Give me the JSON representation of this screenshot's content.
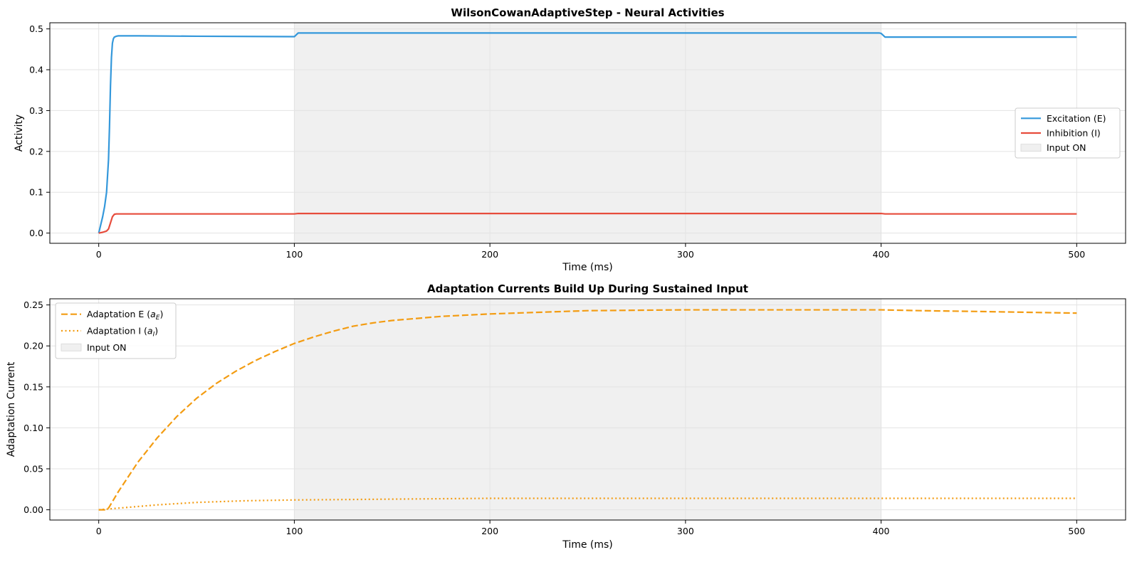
{
  "chart_data": [
    {
      "type": "line",
      "title": "WilsonCowanAdaptiveStep - Neural Activities",
      "xlabel": "Time (ms)",
      "ylabel": "Activity",
      "xlim": [
        -25,
        525
      ],
      "ylim": [
        -0.025,
        0.515
      ],
      "xticks": [
        0,
        100,
        200,
        300,
        400,
        500
      ],
      "yticks": [
        0.0,
        0.1,
        0.2,
        0.3,
        0.4,
        0.5
      ],
      "ytick_labels": [
        "0.0",
        "0.1",
        "0.2",
        "0.3",
        "0.4",
        "0.5"
      ],
      "grid": true,
      "legend_position": "center-right",
      "shaded_region": {
        "label": "Input ON",
        "x": [
          100,
          400
        ],
        "color": "#f0f0f0"
      },
      "series": [
        {
          "name": "Excitation (E)",
          "color": "#3498db",
          "style": "solid",
          "x": [
            0,
            1,
            2,
            3,
            4,
            5,
            5.5,
            6,
            6.5,
            7,
            7.5,
            8,
            9,
            10,
            20,
            50,
            99,
            100,
            102,
            150,
            250,
            350,
            399,
            400,
            402,
            450,
            500
          ],
          "y": [
            0.0,
            0.02,
            0.04,
            0.065,
            0.1,
            0.18,
            0.26,
            0.36,
            0.43,
            0.465,
            0.476,
            0.48,
            0.482,
            0.483,
            0.483,
            0.482,
            0.481,
            0.481,
            0.49,
            0.49,
            0.49,
            0.49,
            0.49,
            0.489,
            0.48,
            0.48,
            0.48
          ]
        },
        {
          "name": "Inhibition (I)",
          "color": "#e74c3c",
          "style": "solid",
          "x": [
            0,
            2,
            4,
            5,
            6,
            7,
            8,
            9,
            10,
            50,
            99,
            100,
            102,
            200,
            300,
            399,
            400,
            402,
            450,
            500
          ],
          "y": [
            0.0,
            0.002,
            0.005,
            0.01,
            0.025,
            0.04,
            0.046,
            0.047,
            0.047,
            0.047,
            0.047,
            0.047,
            0.048,
            0.048,
            0.048,
            0.048,
            0.048,
            0.047,
            0.047,
            0.047
          ]
        }
      ]
    },
    {
      "type": "line",
      "title": "Adaptation Currents Build Up During Sustained Input",
      "xlabel": "Time (ms)",
      "ylabel": "Adaptation Current",
      "xlim": [
        -25,
        525
      ],
      "ylim": [
        -0.0125,
        0.2575
      ],
      "xticks": [
        0,
        100,
        200,
        300,
        400,
        500
      ],
      "yticks": [
        0.0,
        0.05,
        0.1,
        0.15,
        0.2,
        0.25
      ],
      "ytick_labels": [
        "0.00",
        "0.05",
        "0.10",
        "0.15",
        "0.20",
        "0.25"
      ],
      "grid": true,
      "legend_position": "upper-left",
      "shaded_region": {
        "label": "Input ON",
        "x": [
          100,
          400
        ],
        "color": "#f0f0f0"
      },
      "series": [
        {
          "name": "Adaptation E (a_E)",
          "legend_label": {
            "prefix": "Adaptation E (",
            "var": "a",
            "sub": "E",
            "suffix": ")"
          },
          "color": "#f39c12",
          "style": "dashed",
          "x": [
            0,
            3,
            5,
            10,
            20,
            30,
            40,
            50,
            60,
            70,
            80,
            90,
            100,
            110,
            120,
            130,
            140,
            150,
            175,
            200,
            250,
            300,
            350,
            400,
            420,
            450,
            500
          ],
          "y": [
            0.0,
            0.0,
            0.002,
            0.022,
            0.058,
            0.088,
            0.114,
            0.136,
            0.154,
            0.169,
            0.182,
            0.193,
            0.203,
            0.211,
            0.218,
            0.224,
            0.228,
            0.231,
            0.236,
            0.239,
            0.243,
            0.244,
            0.244,
            0.244,
            0.243,
            0.242,
            0.24
          ]
        },
        {
          "name": "Adaptation I (a_I)",
          "legend_label": {
            "prefix": "Adaptation I (",
            "var": "a",
            "sub": "I",
            "suffix": ")"
          },
          "color": "#f39c12",
          "style": "dotted",
          "x": [
            0,
            10,
            20,
            30,
            50,
            75,
            100,
            150,
            200,
            300,
            400,
            450,
            500
          ],
          "y": [
            0.0,
            0.002,
            0.004,
            0.006,
            0.009,
            0.011,
            0.012,
            0.013,
            0.014,
            0.014,
            0.014,
            0.014,
            0.014
          ]
        }
      ]
    }
  ]
}
